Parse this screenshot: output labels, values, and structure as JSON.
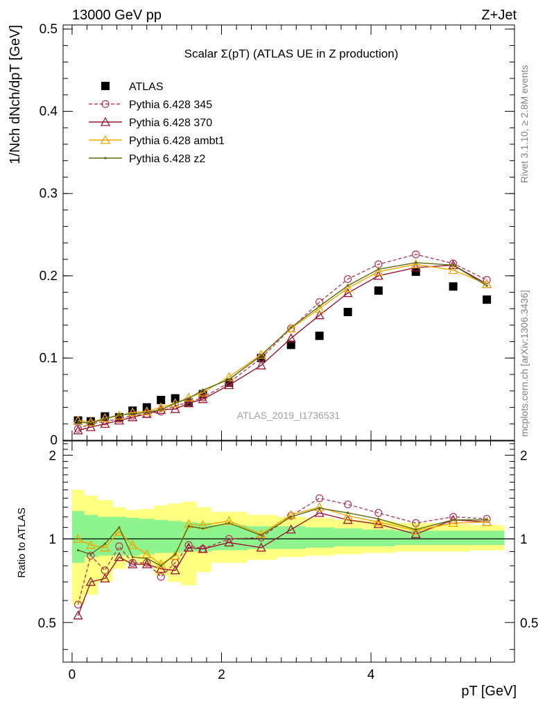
{
  "header": {
    "left": "13000 GeV pp",
    "right": "Z+Jet"
  },
  "side_text": {
    "rivet": "Rivet 3.1.10, ≥ 2.8M events",
    "mcplots": "mcplots.cern.ch [arXiv:1306.3436]"
  },
  "chart_data": [
    {
      "type": "scatter",
      "title": "Scalar Σ(pT) (ATLAS UE in Z production)",
      "watermark": "ATLAS_2019_I1736531",
      "ylabel": "1/Nch dNch/dpT [GeV]",
      "xlim": [
        -0.12,
        5.92
      ],
      "ylim": [
        0,
        0.505
      ],
      "yticks": [
        0,
        0.1,
        0.2,
        0.3,
        0.4,
        0.5
      ],
      "ytick_labels": [
        "0",
        "0.1",
        "0.2",
        "0.3",
        "0.4",
        "0.5"
      ],
      "legend_position": "top-left",
      "x": [
        0.08,
        0.25,
        0.44,
        0.63,
        0.81,
        1.0,
        1.19,
        1.38,
        1.56,
        1.75,
        2.1,
        2.53,
        2.93,
        3.31,
        3.69,
        4.1,
        4.6,
        5.1,
        5.55
      ],
      "series": [
        {
          "name": "ATLAS",
          "color": "#000000",
          "marker": "square",
          "dashed": false,
          "values": [
            0.024,
            0.023,
            0.029,
            0.028,
            0.036,
            0.04,
            0.049,
            0.051,
            0.046,
            0.056,
            0.07,
            0.1,
            0.116,
            0.127,
            0.156,
            0.182,
            0.205,
            0.187,
            0.171
          ]
        },
        {
          "name": "Pythia 6.428 345",
          "color": "#b0405a",
          "marker": "circle",
          "dashed": true,
          "values": [
            0.014,
            0.02,
            0.023,
            0.026,
            0.03,
            0.032,
            0.035,
            0.042,
            0.046,
            0.052,
            0.07,
            0.1,
            0.136,
            0.168,
            0.196,
            0.214,
            0.226,
            0.215,
            0.195
          ]
        },
        {
          "name": "Pythia 6.428 370",
          "color": "#9b1530",
          "marker": "triangle",
          "dashed": false,
          "values": [
            0.012,
            0.016,
            0.02,
            0.024,
            0.028,
            0.032,
            0.037,
            0.038,
            0.045,
            0.05,
            0.067,
            0.091,
            0.124,
            0.152,
            0.179,
            0.2,
            0.21,
            0.213,
            0.19
          ]
        },
        {
          "name": "Pythia 6.428 ambt1",
          "color": "#f0a800",
          "marker": "triangle",
          "dashed": false,
          "values": [
            0.024,
            0.022,
            0.027,
            0.03,
            0.034,
            0.035,
            0.04,
            0.045,
            0.052,
            0.058,
            0.077,
            0.104,
            0.136,
            0.16,
            0.185,
            0.205,
            0.214,
            0.207,
            0.19
          ]
        },
        {
          "name": "Pythia 6.428 z2",
          "color": "#5a6a10",
          "marker": "dot",
          "dashed": false,
          "values": [
            0.022,
            0.021,
            0.026,
            0.031,
            0.032,
            0.034,
            0.037,
            0.045,
            0.051,
            0.061,
            0.074,
            0.103,
            0.137,
            0.163,
            0.188,
            0.208,
            0.216,
            0.213,
            0.188
          ]
        }
      ]
    },
    {
      "type": "scatter",
      "ylabel": "Ratio to ATLAS",
      "xlabel": "pT [GeV]",
      "xlim": [
        -0.12,
        5.92
      ],
      "ylim": [
        0.36,
        2.25
      ],
      "yticks": [
        0.5,
        1,
        2
      ],
      "ytick_labels": [
        "0.5",
        "1",
        "2"
      ],
      "xticks": [
        0,
        2,
        4
      ],
      "xtick_labels": [
        "0",
        "2",
        "4"
      ],
      "reference_line": 1,
      "band_edges": [
        0.0,
        0.16,
        0.34,
        0.54,
        0.72,
        0.9,
        1.1,
        1.28,
        1.46,
        1.66,
        1.86,
        2.34,
        2.74,
        3.12,
        3.5,
        3.88,
        4.32,
        4.88,
        5.32,
        5.78
      ],
      "band_stat": [
        [
          0.82,
          1.26
        ],
        [
          0.86,
          1.22
        ],
        [
          0.87,
          1.2
        ],
        [
          0.87,
          1.2
        ],
        [
          0.87,
          1.19
        ],
        [
          0.88,
          1.18
        ],
        [
          0.89,
          1.17
        ],
        [
          0.89,
          1.16
        ],
        [
          0.9,
          1.15
        ],
        [
          0.9,
          1.14
        ],
        [
          0.91,
          1.12
        ],
        [
          0.92,
          1.11
        ],
        [
          0.92,
          1.11
        ],
        [
          0.93,
          1.1
        ],
        [
          0.94,
          1.09
        ],
        [
          0.94,
          1.08
        ],
        [
          0.95,
          1.07
        ],
        [
          0.95,
          1.07
        ],
        [
          0.95,
          1.07
        ]
      ],
      "band_total": [
        [
          0.58,
          1.5
        ],
        [
          0.63,
          1.43
        ],
        [
          0.7,
          1.38
        ],
        [
          0.78,
          1.3
        ],
        [
          0.82,
          1.27
        ],
        [
          0.8,
          1.28
        ],
        [
          0.74,
          1.32
        ],
        [
          0.7,
          1.34
        ],
        [
          0.68,
          1.36
        ],
        [
          0.76,
          1.3
        ],
        [
          0.82,
          1.25
        ],
        [
          0.84,
          1.22
        ],
        [
          0.86,
          1.2
        ],
        [
          0.87,
          1.19
        ],
        [
          0.88,
          1.17
        ],
        [
          0.89,
          1.16
        ],
        [
          0.9,
          1.14
        ],
        [
          0.9,
          1.13
        ],
        [
          0.91,
          1.12
        ]
      ],
      "x": [
        0.08,
        0.25,
        0.44,
        0.63,
        0.81,
        1.0,
        1.19,
        1.38,
        1.56,
        1.75,
        2.1,
        2.53,
        2.93,
        3.31,
        3.69,
        4.1,
        4.6,
        5.1,
        5.55
      ],
      "series": [
        {
          "name": "Pythia 6.428 345",
          "color": "#b0405a",
          "marker": "circle",
          "dashed": true,
          "values": [
            0.58,
            0.87,
            0.77,
            0.94,
            0.82,
            0.82,
            0.73,
            0.82,
            0.95,
            0.92,
            1.0,
            1.01,
            1.21,
            1.4,
            1.33,
            1.24,
            1.14,
            1.2,
            1.18
          ]
        },
        {
          "name": "Pythia 6.428 370",
          "color": "#9b1530",
          "marker": "triangle",
          "dashed": false,
          "values": [
            0.53,
            0.7,
            0.72,
            0.86,
            0.81,
            0.81,
            0.78,
            0.77,
            0.93,
            0.92,
            0.97,
            0.93,
            1.08,
            1.24,
            1.17,
            1.13,
            1.04,
            1.17,
            1.15
          ]
        },
        {
          "name": "Pythia 6.428 ambt1",
          "color": "#f0a800",
          "marker": "triangle",
          "dashed": false,
          "values": [
            1.0,
            0.95,
            0.93,
            1.06,
            0.95,
            0.88,
            0.81,
            0.87,
            1.13,
            1.12,
            1.16,
            1.04,
            1.22,
            1.3,
            1.21,
            1.15,
            1.07,
            1.14,
            1.15
          ]
        },
        {
          "name": "Pythia 6.428 z2",
          "color": "#5a6a10",
          "marker": "dot",
          "dashed": false,
          "values": [
            0.91,
            0.88,
            0.96,
            1.1,
            0.86,
            0.85,
            0.8,
            0.88,
            1.11,
            1.09,
            1.14,
            1.03,
            1.2,
            1.29,
            1.24,
            1.18,
            1.08,
            1.17,
            1.17
          ]
        }
      ]
    }
  ]
}
